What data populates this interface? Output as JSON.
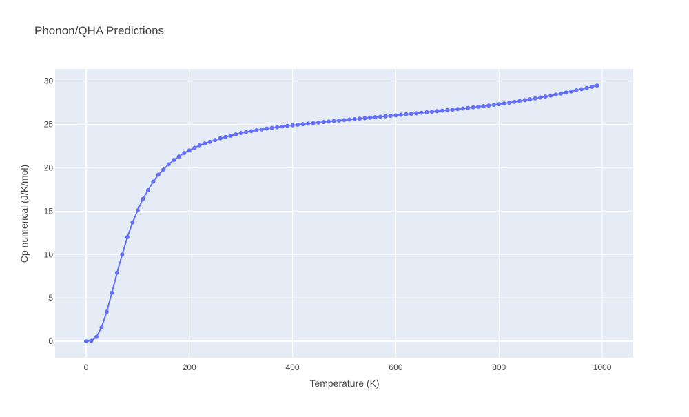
{
  "chart_data": {
    "type": "line",
    "title": "Phonon/QHA Predictions",
    "x_label": "Temperature (K)",
    "y_label": "Cp numerical (J/K/mol)",
    "x": [
      0,
      10,
      20,
      30,
      40,
      50,
      60,
      70,
      80,
      90,
      100,
      110,
      120,
      130,
      140,
      150,
      160,
      170,
      180,
      190,
      200,
      210,
      220,
      230,
      240,
      250,
      260,
      270,
      280,
      290,
      300,
      310,
      320,
      330,
      340,
      350,
      360,
      370,
      380,
      390,
      400,
      410,
      420,
      430,
      440,
      450,
      460,
      470,
      480,
      490,
      500,
      510,
      520,
      530,
      540,
      550,
      560,
      570,
      580,
      590,
      600,
      610,
      620,
      630,
      640,
      650,
      660,
      670,
      680,
      690,
      700,
      710,
      720,
      730,
      740,
      750,
      760,
      770,
      780,
      790,
      800,
      810,
      820,
      830,
      840,
      850,
      860,
      870,
      880,
      890,
      900,
      910,
      920,
      930,
      940,
      950,
      960,
      970,
      980,
      990
    ],
    "series": [
      {
        "name": "Cp numerical",
        "color": "#636efa",
        "values": [
          0,
          0.05,
          0.5,
          1.6,
          3.4,
          5.6,
          7.9,
          10.0,
          12.0,
          13.7,
          15.1,
          16.4,
          17.4,
          18.4,
          19.2,
          19.8,
          20.4,
          20.9,
          21.3,
          21.7,
          22.0,
          22.3,
          22.6,
          22.8,
          23.0,
          23.2,
          23.4,
          23.55,
          23.7,
          23.85,
          24.0,
          24.12,
          24.23,
          24.33,
          24.43,
          24.52,
          24.6,
          24.68,
          24.76,
          24.83,
          24.9,
          24.96,
          25.03,
          25.09,
          25.15,
          25.21,
          25.27,
          25.33,
          25.39,
          25.45,
          25.5,
          25.56,
          25.61,
          25.67,
          25.72,
          25.78,
          25.83,
          25.89,
          25.94,
          26.0,
          26.05,
          26.11,
          26.17,
          26.22,
          26.28,
          26.34,
          26.4,
          26.46,
          26.52,
          26.58,
          26.64,
          26.7,
          26.77,
          26.83,
          26.9,
          26.97,
          27.04,
          27.11,
          27.18,
          27.26,
          27.34,
          27.42,
          27.51,
          27.6,
          27.69,
          27.79,
          27.89,
          27.99,
          28.1,
          28.21,
          28.32,
          28.44,
          28.56,
          28.68,
          28.81,
          28.94,
          29.07,
          29.2,
          29.34,
          29.48
        ]
      }
    ],
    "xlim": [
      -60,
      1060
    ],
    "ylim": [
      -1.9,
      31.4
    ],
    "xticks": [
      0,
      200,
      400,
      600,
      800,
      1000
    ],
    "yticks": [
      0,
      5,
      10,
      15,
      20,
      25,
      30
    ],
    "grid": true
  }
}
